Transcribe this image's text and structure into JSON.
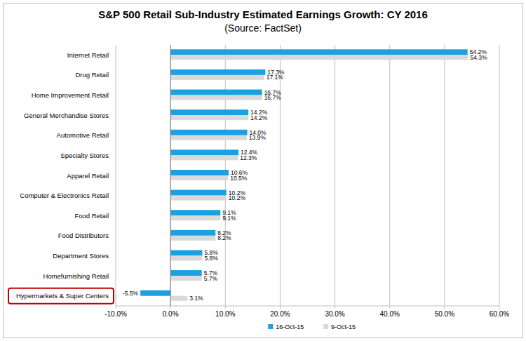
{
  "chart_data": {
    "type": "bar",
    "title": "S&P 500 Retail Sub-Industry Estimated Earnings Growth: CY 2016",
    "subtitle": "(Source: FactSet)",
    "orientation": "horizontal",
    "data_labels": true,
    "grid": true,
    "legend": "bottom",
    "categories": [
      "Internet Retail",
      "Drug Retail",
      "Home Improvement Retail",
      "General Merchandise Stores",
      "Automotive Retail",
      "Specialty Stores",
      "Apparel Retail",
      "Computer & Electronics Retail",
      "Food Retail",
      "Food Distributors",
      "Department Stores",
      "Homefurnishing Retail",
      "Hypermarkets & Super Centers"
    ],
    "series": [
      {
        "name": "16-Oct-15",
        "color": "#1ba1e2",
        "values": [
          54.2,
          17.3,
          16.7,
          14.2,
          14.0,
          12.4,
          10.6,
          10.2,
          9.1,
          8.2,
          5.8,
          5.7,
          -5.5
        ],
        "value_labels": [
          "54.2%",
          "17.3%",
          "16.7%",
          "14.2%",
          "14.0%",
          "12.4%",
          "10.6%",
          "10.2%",
          "9.1%",
          "8.2%",
          "5.8%",
          "5.7%",
          "-5.5%"
        ]
      },
      {
        "name": "9-Oct-15",
        "color": "#d9d9d9",
        "values": [
          54.3,
          17.1,
          16.7,
          14.2,
          13.9,
          12.3,
          10.5,
          10.2,
          9.1,
          8.2,
          5.8,
          5.7,
          3.1
        ],
        "value_labels": [
          "54.3%",
          "17.1%",
          "16.7%",
          "14.2%",
          "13.9%",
          "12.3%",
          "10.5%",
          "10.2%",
          "9.1%",
          "8.2%",
          "5.8%",
          "5.7%",
          "3.1%"
        ]
      }
    ],
    "xlim": [
      -10,
      60
    ],
    "xticks": [
      {
        "value": -10,
        "label": "-10.0%"
      },
      {
        "value": 0,
        "label": "0.0%"
      },
      {
        "value": 10,
        "label": "10.0%"
      },
      {
        "value": 20,
        "label": "20.0%"
      },
      {
        "value": 30,
        "label": "30.0%"
      },
      {
        "value": 40,
        "label": "40.0%"
      },
      {
        "value": 50,
        "label": "50.0%"
      },
      {
        "value": 60,
        "label": "60.0%"
      }
    ]
  }
}
